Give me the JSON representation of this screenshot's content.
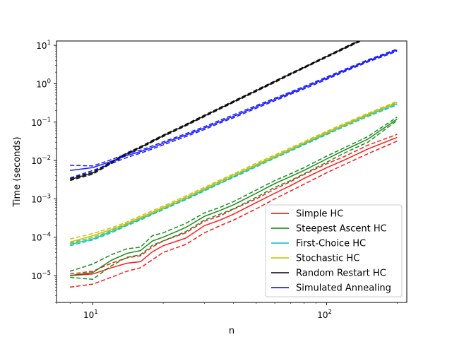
{
  "chart_data": {
    "type": "line",
    "title": "",
    "xlabel": "n",
    "ylabel": "Time (seconds)",
    "xscale": "log",
    "yscale": "log",
    "xlim": [
      7,
      220
    ],
    "ylim": [
      2e-06,
      13
    ],
    "grid": false,
    "legend_position": "lower-right",
    "x_tick_labels": [
      {
        "value": 10,
        "base": "10",
        "exp": "1"
      },
      {
        "value": 100,
        "base": "10",
        "exp": "2"
      }
    ],
    "y_tick_labels": [
      {
        "value": 1e-05,
        "base": "10",
        "exp": "−5"
      },
      {
        "value": 0.0001,
        "base": "10",
        "exp": "−4"
      },
      {
        "value": 0.001,
        "base": "10",
        "exp": "−3"
      },
      {
        "value": 0.01,
        "base": "10",
        "exp": "−2"
      },
      {
        "value": 0.1,
        "base": "10",
        "exp": "−1"
      },
      {
        "value": 1,
        "base": "10",
        "exp": "0"
      },
      {
        "value": 10,
        "base": "10",
        "exp": "1"
      }
    ],
    "series": [
      {
        "name": "Simple HC",
        "color": "#ff0000",
        "x": [
          8,
          10,
          12,
          14,
          16,
          18,
          20,
          25,
          30,
          35,
          40,
          50,
          60,
          70,
          80,
          100,
          120,
          150,
          200
        ],
        "values": [
          1e-05,
          1.1e-05,
          1.6e-05,
          2.1e-05,
          2.3e-05,
          4.2e-05,
          6e-05,
          9.5e-05,
          0.0002,
          0.00028,
          0.0004,
          0.0008,
          0.0014,
          0.0022,
          0.0034,
          0.0065,
          0.0105,
          0.02,
          0.04
        ],
        "lower": [
          5e-06,
          6e-06,
          9e-06,
          1.3e-05,
          1.6e-05,
          2.6e-05,
          4e-05,
          6.5e-05,
          0.00013,
          0.0002,
          0.00028,
          0.00055,
          0.001,
          0.0016,
          0.0024,
          0.0048,
          0.008,
          0.015,
          0.032
        ],
        "upper": [
          1.1e-05,
          1.3e-05,
          2.1e-05,
          2.9e-05,
          3.3e-05,
          5.6e-05,
          8e-05,
          0.00013,
          0.00026,
          0.00036,
          0.00054,
          0.001,
          0.0018,
          0.0028,
          0.0043,
          0.0082,
          0.013,
          0.025,
          0.048
        ]
      },
      {
        "name": "Steepest Ascent HC",
        "color": "#008000",
        "x": [
          8,
          10,
          12,
          14,
          16,
          18,
          20,
          25,
          30,
          35,
          40,
          50,
          60,
          70,
          80,
          100,
          120,
          150,
          200
        ],
        "values": [
          1e-05,
          1.2e-05,
          2.5e-05,
          3.8e-05,
          4.5e-05,
          8e-05,
          0.0001,
          0.00018,
          0.00035,
          0.0005,
          0.0007,
          0.0014,
          0.0025,
          0.0038,
          0.0055,
          0.011,
          0.019,
          0.036,
          0.12
        ],
        "lower": [
          9e-06,
          8e-06,
          1.8e-05,
          3e-05,
          3.5e-05,
          6.2e-05,
          8e-05,
          0.00014,
          0.00028,
          0.0004,
          0.00055,
          0.0011,
          0.002,
          0.003,
          0.0045,
          0.009,
          0.016,
          0.03,
          0.11
        ],
        "upper": [
          1.3e-05,
          2e-05,
          3.5e-05,
          5e-05,
          5.5e-05,
          0.00011,
          0.00013,
          0.00023,
          0.00043,
          0.0006,
          0.00085,
          0.0017,
          0.003,
          0.0045,
          0.0065,
          0.013,
          0.022,
          0.042,
          0.135
        ]
      },
      {
        "name": "First-Choice HC",
        "color": "#00bfbf",
        "x": [
          8,
          10,
          12,
          14,
          16,
          18,
          20,
          25,
          30,
          35,
          40,
          50,
          60,
          70,
          80,
          100,
          120,
          150,
          200
        ],
        "values": [
          6.5e-05,
          9e-05,
          0.00014,
          0.00021,
          0.0003,
          0.00041,
          0.00055,
          0.001,
          0.0017,
          0.0026,
          0.0038,
          0.0072,
          0.012,
          0.0185,
          0.027,
          0.05,
          0.083,
          0.15,
          0.3
        ],
        "lower": [
          6e-05,
          8.5e-05,
          0.00013,
          0.0002,
          0.00028,
          0.00039,
          0.00052,
          0.00095,
          0.0016,
          0.0025,
          0.0036,
          0.0068,
          0.0115,
          0.0175,
          0.0255,
          0.047,
          0.078,
          0.14,
          0.28
        ],
        "upper": [
          7.2e-05,
          9.8e-05,
          0.00015,
          0.000225,
          0.00032,
          0.00044,
          0.00059,
          0.00107,
          0.0018,
          0.0028,
          0.00405,
          0.0077,
          0.0128,
          0.0195,
          0.0285,
          0.053,
          0.088,
          0.16,
          0.32
        ]
      },
      {
        "name": "Stochastic HC",
        "color": "#bfbf00",
        "x": [
          8,
          10,
          12,
          14,
          16,
          18,
          20,
          25,
          30,
          35,
          40,
          50,
          60,
          70,
          80,
          100,
          120,
          150,
          200
        ],
        "values": [
          7.5e-05,
          0.00011,
          0.00016,
          0.00023,
          0.00033,
          0.00045,
          0.0006,
          0.0011,
          0.00185,
          0.0029,
          0.0042,
          0.0078,
          0.013,
          0.02,
          0.029,
          0.054,
          0.088,
          0.16,
          0.33
        ],
        "lower": [
          6.8e-05,
          0.0001,
          0.000145,
          0.000215,
          0.00031,
          0.00042,
          0.00056,
          0.00103,
          0.00175,
          0.0027,
          0.00395,
          0.0073,
          0.0122,
          0.0188,
          0.0275,
          0.051,
          0.083,
          0.15,
          0.31
        ],
        "upper": [
          9e-05,
          0.000125,
          0.000175,
          0.00025,
          0.00036,
          0.00049,
          0.00065,
          0.0012,
          0.002,
          0.0031,
          0.0045,
          0.0085,
          0.014,
          0.0215,
          0.031,
          0.058,
          0.094,
          0.17,
          0.35
        ]
      },
      {
        "name": "Random Restart HC",
        "color": "#000000",
        "x": [
          8,
          10,
          12,
          14,
          16,
          18,
          20,
          25,
          30,
          35,
          40,
          50,
          60,
          70,
          80,
          100,
          120,
          150,
          200
        ],
        "values": [
          0.0032,
          0.0047,
          0.0088,
          0.015,
          0.022,
          0.032,
          0.044,
          0.084,
          0.145,
          0.23,
          0.34,
          0.66,
          1.13,
          1.8,
          2.65,
          5.1,
          8.7,
          16.5,
          34.0
        ],
        "lower": [
          0.003,
          0.0044,
          0.0083,
          0.0142,
          0.021,
          0.0305,
          0.042,
          0.08,
          0.138,
          0.22,
          0.325,
          0.63,
          1.08,
          1.72,
          2.55,
          4.9,
          8.3,
          15.8,
          32.5
        ],
        "upper": [
          0.0034,
          0.005,
          0.0093,
          0.0158,
          0.023,
          0.0335,
          0.046,
          0.088,
          0.152,
          0.24,
          0.355,
          0.69,
          1.18,
          1.88,
          2.75,
          5.3,
          9.1,
          17.2,
          35.5
        ]
      },
      {
        "name": "Simulated Annealing",
        "color": "#0000ff",
        "x": [
          8,
          10,
          12,
          14,
          16,
          18,
          20,
          25,
          30,
          35,
          40,
          50,
          60,
          70,
          80,
          100,
          120,
          150,
          200
        ],
        "values": [
          0.0055,
          0.0065,
          0.0095,
          0.0135,
          0.017,
          0.022,
          0.028,
          0.046,
          0.07,
          0.103,
          0.142,
          0.25,
          0.39,
          0.57,
          0.79,
          1.4,
          2.25,
          3.95,
          7.5
        ],
        "lower": [
          0.0035,
          0.0055,
          0.0083,
          0.012,
          0.0155,
          0.02,
          0.0255,
          0.042,
          0.064,
          0.095,
          0.13,
          0.23,
          0.36,
          0.53,
          0.73,
          1.3,
          2.1,
          3.7,
          7.0
        ],
        "upper": [
          0.0075,
          0.0072,
          0.0105,
          0.015,
          0.0185,
          0.024,
          0.0305,
          0.05,
          0.076,
          0.112,
          0.155,
          0.27,
          0.42,
          0.61,
          0.85,
          1.5,
          2.4,
          4.2,
          8.0
        ]
      }
    ]
  }
}
